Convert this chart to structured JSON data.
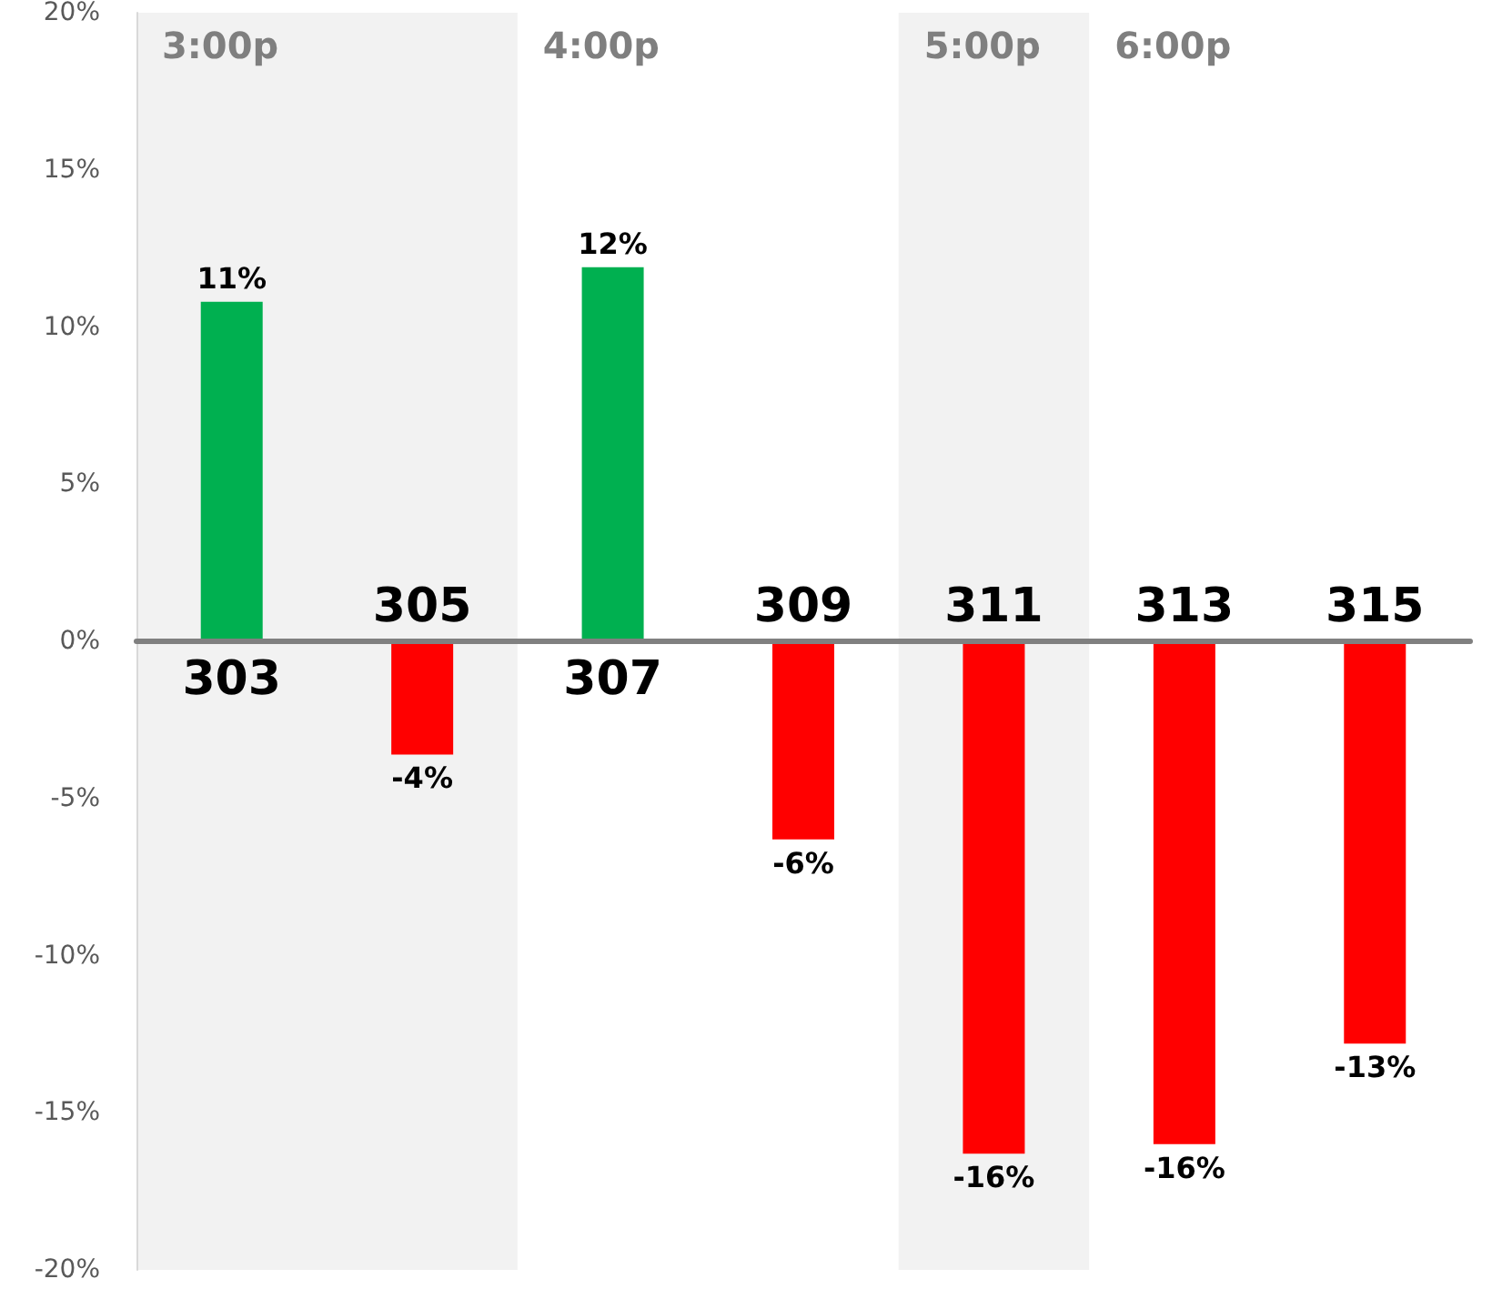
{
  "chart_data": {
    "type": "bar",
    "categories": [
      "303",
      "305",
      "307",
      "309",
      "311",
      "313",
      "315"
    ],
    "values": [
      10.8,
      -3.6,
      11.9,
      -6.3,
      -16.3,
      -16.0,
      -12.8
    ],
    "colors": [
      "#00b050",
      "#ff0000",
      "#00b050",
      "#ff0000",
      "#ff0000",
      "#ff0000",
      "#ff0000"
    ],
    "value_labels": [
      "11%",
      "-4%",
      "12%",
      "-6%",
      "-16%",
      "-16%",
      "-13%"
    ],
    "ylim": [
      -20,
      20
    ],
    "yticks": [
      {
        "value": -20,
        "label": "-20%"
      },
      {
        "value": -15,
        "label": "-15%"
      },
      {
        "value": -10,
        "label": "-10%"
      },
      {
        "value": -5,
        "label": "-5%"
      },
      {
        "value": 0,
        "label": "0%"
      },
      {
        "value": 5,
        "label": "5%"
      },
      {
        "value": 10,
        "label": "10%"
      },
      {
        "value": 15,
        "label": "15%"
      },
      {
        "value": 20,
        "label": "20%"
      }
    ],
    "bands": [
      {
        "axis": "x",
        "from": "303",
        "to": "305",
        "label": "3:00p",
        "color": "#f2f2f2"
      },
      {
        "axis": "x",
        "from": "311",
        "to": "311",
        "label": "5:00p",
        "color": "#f2f2f2"
      }
    ],
    "annotations": [
      "4:00p",
      "6:00p"
    ]
  }
}
